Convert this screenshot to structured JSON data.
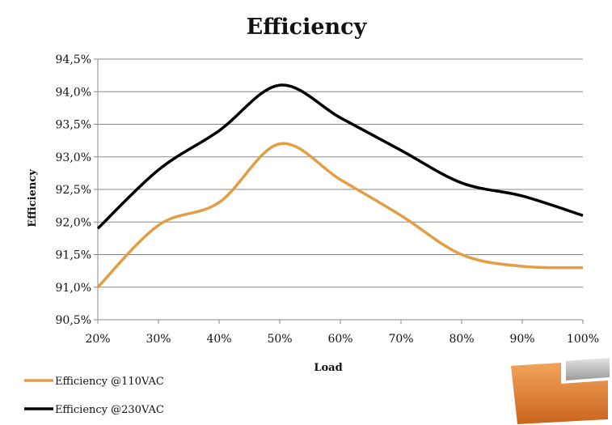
{
  "chart_data": {
    "type": "line",
    "title": "Efficiency",
    "xlabel": "Load",
    "ylabel": "Efficiency",
    "categories": [
      "20%",
      "30%",
      "40%",
      "50%",
      "60%",
      "70%",
      "80%",
      "90%",
      "100%"
    ],
    "y_ticks": [
      "90,5%",
      "91,0%",
      "91,5%",
      "92,0%",
      "92,5%",
      "93,0%",
      "93,5%",
      "94,0%",
      "94,5%"
    ],
    "ylim": [
      90.5,
      94.5
    ],
    "grid": true,
    "legend_position": "bottom-left",
    "series": [
      {
        "name": "Efficiency @110VAC",
        "color": "#e39e45",
        "values": [
          91.0,
          91.95,
          92.3,
          93.2,
          92.65,
          92.1,
          91.5,
          91.32,
          91.3
        ]
      },
      {
        "name": "Efficiency @230VAC",
        "color": "#000000",
        "values": [
          91.9,
          92.8,
          93.4,
          94.1,
          93.6,
          93.1,
          92.6,
          92.4,
          92.1
        ]
      }
    ]
  },
  "logo": {
    "name": "legit-reviews-logo-icon",
    "colors": [
      "#e0873a",
      "#b8b8b8"
    ]
  }
}
